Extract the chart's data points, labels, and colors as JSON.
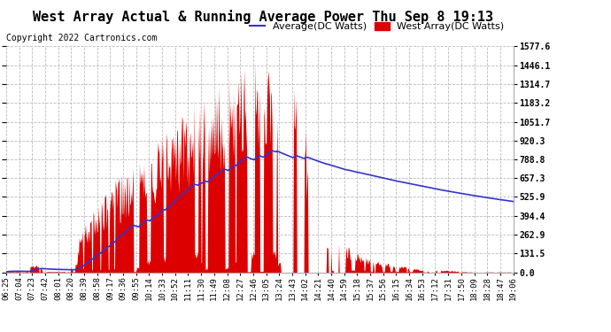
{
  "title": "West Array Actual & Running Average Power Thu Sep 8 19:13",
  "copyright": "Copyright 2022 Cartronics.com",
  "legend_avg": "Average(DC Watts)",
  "legend_west": "West Array(DC Watts)",
  "ylabel_right_ticks": [
    0.0,
    131.5,
    262.9,
    394.4,
    525.9,
    657.3,
    788.8,
    920.3,
    1051.7,
    1183.2,
    1314.7,
    1446.1,
    1577.6
  ],
  "x_tick_labels": [
    "06:25",
    "07:04",
    "07:23",
    "07:42",
    "08:01",
    "08:20",
    "08:39",
    "08:58",
    "09:17",
    "09:36",
    "09:55",
    "10:14",
    "10:33",
    "10:52",
    "11:11",
    "11:30",
    "11:49",
    "12:08",
    "12:27",
    "12:46",
    "13:05",
    "13:24",
    "13:43",
    "14:02",
    "14:21",
    "14:40",
    "14:59",
    "15:18",
    "15:37",
    "15:56",
    "16:15",
    "16:34",
    "16:53",
    "17:12",
    "17:31",
    "17:50",
    "18:09",
    "18:28",
    "18:47",
    "19:06"
  ],
  "ymax": 1577.6,
  "bg_color": "#ffffff",
  "grid_color": "#bbbbbb",
  "red_color": "#dd0000",
  "blue_color": "#3333cc",
  "title_color": "#000000",
  "copyright_color": "#000000",
  "title_fontsize": 11,
  "copyright_fontsize": 7,
  "legend_fontsize": 8,
  "tick_fontsize": 6.5
}
